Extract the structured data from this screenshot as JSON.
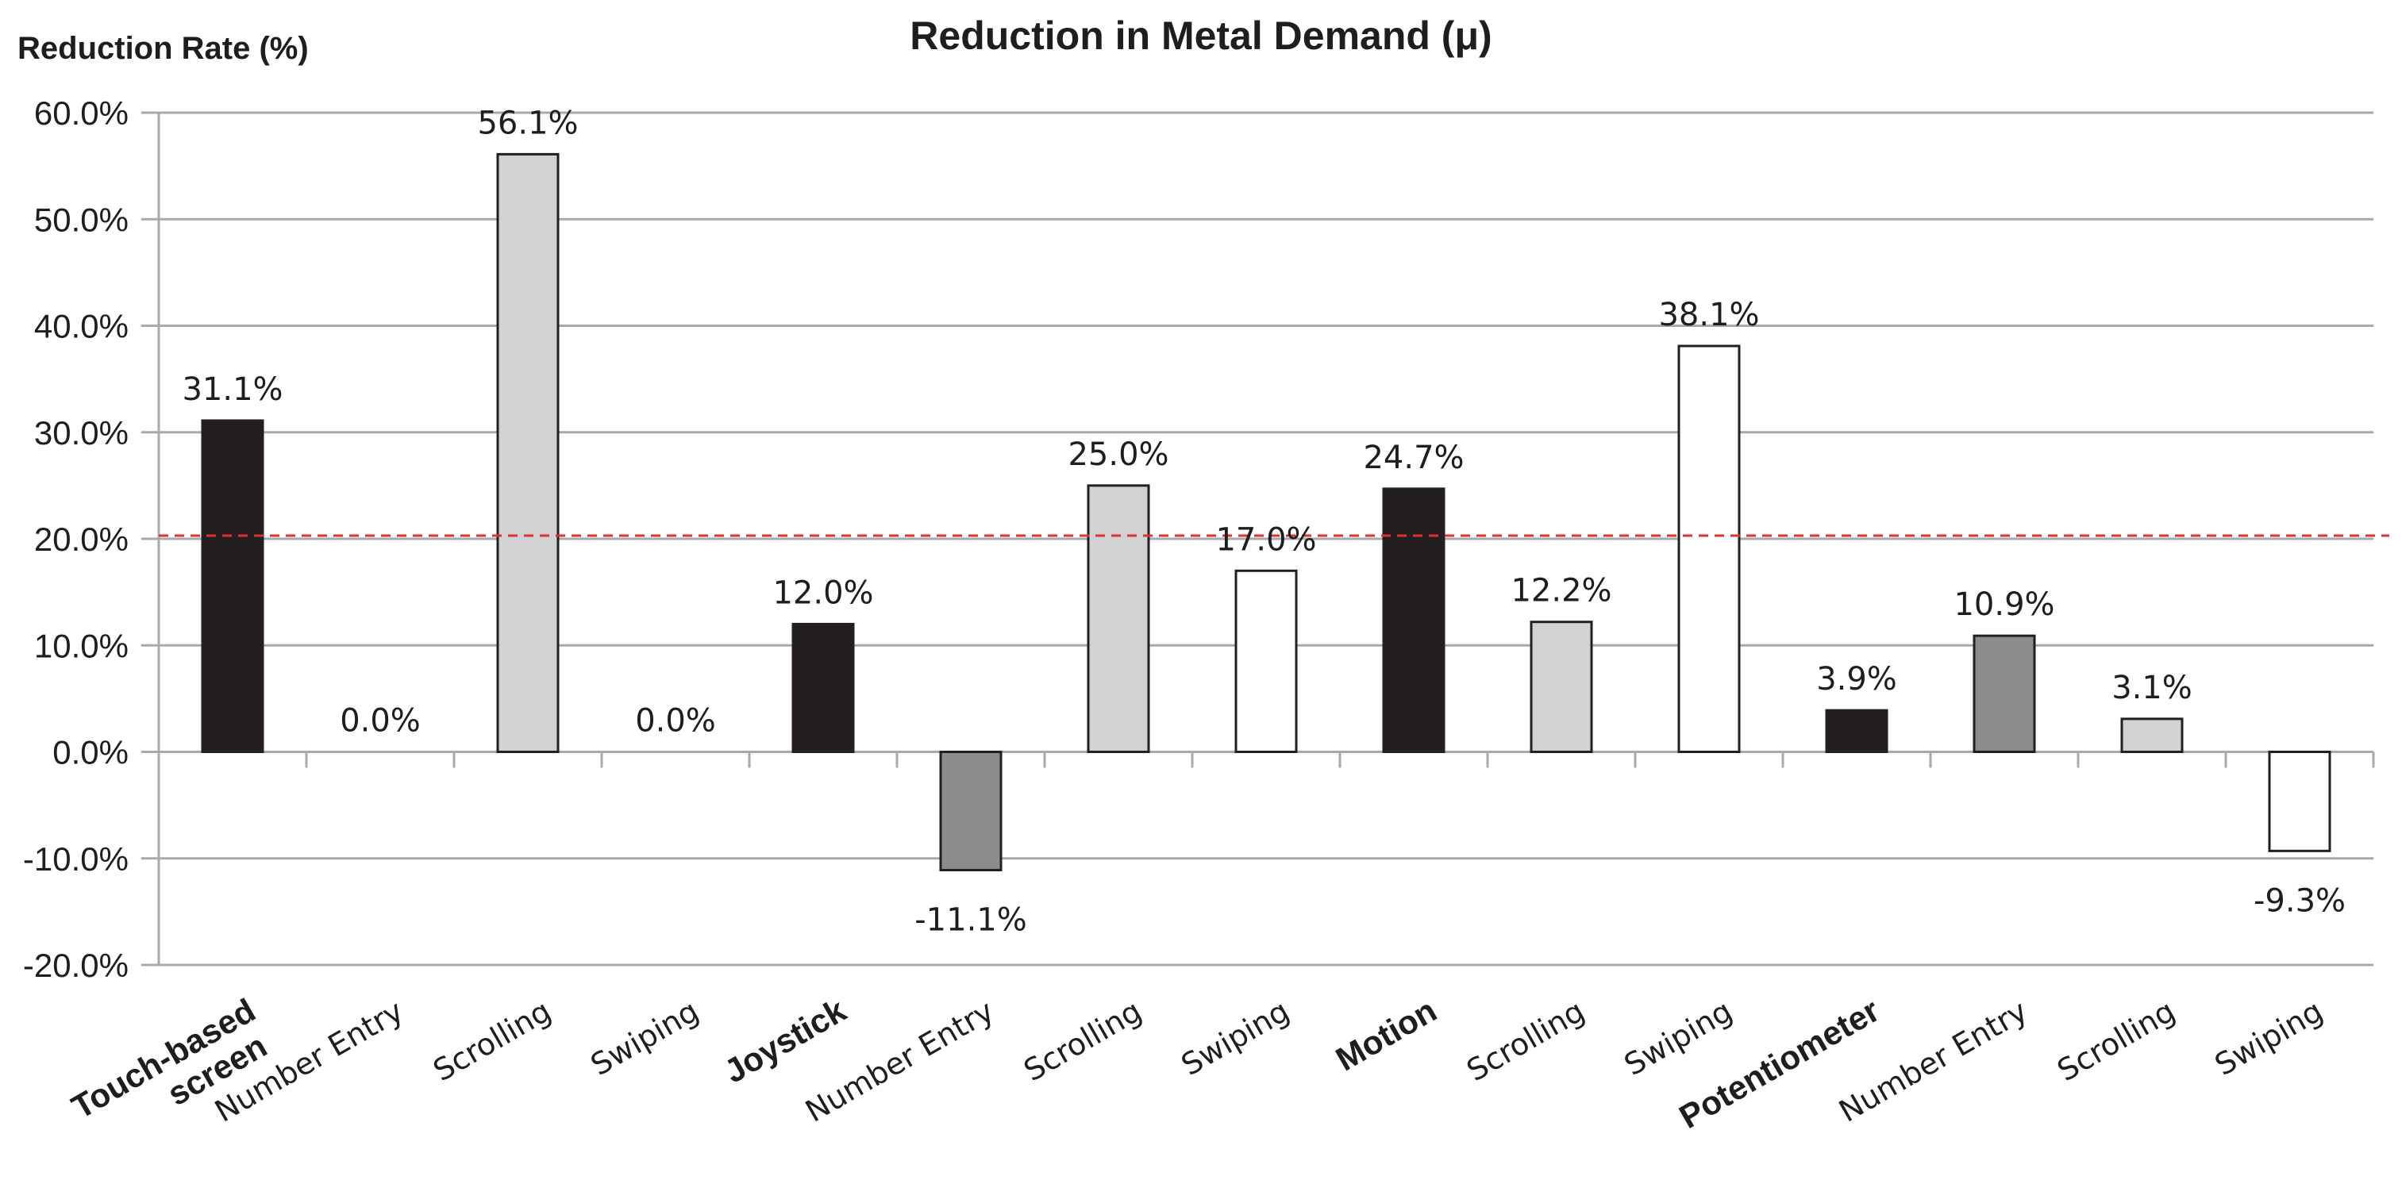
{
  "chart_data": {
    "type": "bar",
    "title": "Reduction in Metal Demand (μ)",
    "ylabel": "Reduction Rate (%)",
    "xlabel": "",
    "ylim": [
      -20,
      60
    ],
    "yticks": [
      60,
      50,
      40,
      30,
      20,
      10,
      0,
      -10,
      -20
    ],
    "ytick_labels": [
      "60.0%",
      "50.0%",
      "40.0%",
      "30.0%",
      "20.0%",
      "10.0%",
      "0.0%",
      "-10.0%",
      "-20.0%"
    ],
    "grid": true,
    "reference_line": {
      "value": 20.3,
      "style": "dashed",
      "color": "#e03030"
    },
    "categories": [
      "Touch-based screen",
      "Number Entry",
      "Scrolling",
      "Swiping",
      "Joystick",
      "Number Entry",
      "Scrolling",
      "Swiping",
      "Motion",
      "Scrolling",
      "Swiping",
      "Potentiometer",
      "Number Entry",
      "Scrolling",
      "Swiping"
    ],
    "category_lines": [
      [
        "Touch-based",
        "screen"
      ],
      [
        "Number Entry"
      ],
      [
        "Scrolling"
      ],
      [
        "Swiping"
      ],
      [
        "Joystick"
      ],
      [
        "Number Entry"
      ],
      [
        "Scrolling"
      ],
      [
        "Swiping"
      ],
      [
        "Motion"
      ],
      [
        "Scrolling"
      ],
      [
        "Swiping"
      ],
      [
        "Potentiometer"
      ],
      [
        "Number Entry"
      ],
      [
        "Scrolling"
      ],
      [
        "Swiping"
      ]
    ],
    "is_group_header": [
      true,
      false,
      false,
      false,
      true,
      false,
      false,
      false,
      true,
      false,
      false,
      true,
      false,
      false,
      false
    ],
    "values": [
      31.1,
      0.0,
      56.1,
      0.0,
      12.0,
      -11.1,
      25.0,
      17.0,
      24.7,
      12.2,
      38.1,
      3.9,
      10.9,
      3.1,
      -9.3
    ],
    "value_labels": [
      "31.1%",
      "0.0%",
      "56.1%",
      "0.0%",
      "12.0%",
      "-11.1%",
      "25.0%",
      "17.0%",
      "24.7%",
      "12.2%",
      "38.1%",
      "3.9%",
      "10.9%",
      "3.1%",
      "-9.3%"
    ],
    "bar_colors": [
      "#231f20",
      "#ffffff",
      "#d1d2d4",
      "#ffffff",
      "#231f20",
      "#8c8c8c",
      "#d1d2d4",
      "#ffffff",
      "#231f20",
      "#d1d2d4",
      "#ffffff",
      "#231f20",
      "#8c8c8c",
      "#d1d2d4",
      "#ffffff"
    ],
    "colors": {
      "group_header": "#231f20",
      "number_entry": "#8c8c8c",
      "scrolling": "#d1d2d4",
      "swiping": "#ffffff",
      "grid": "#a7a9ac",
      "outline": "#231f20"
    }
  }
}
